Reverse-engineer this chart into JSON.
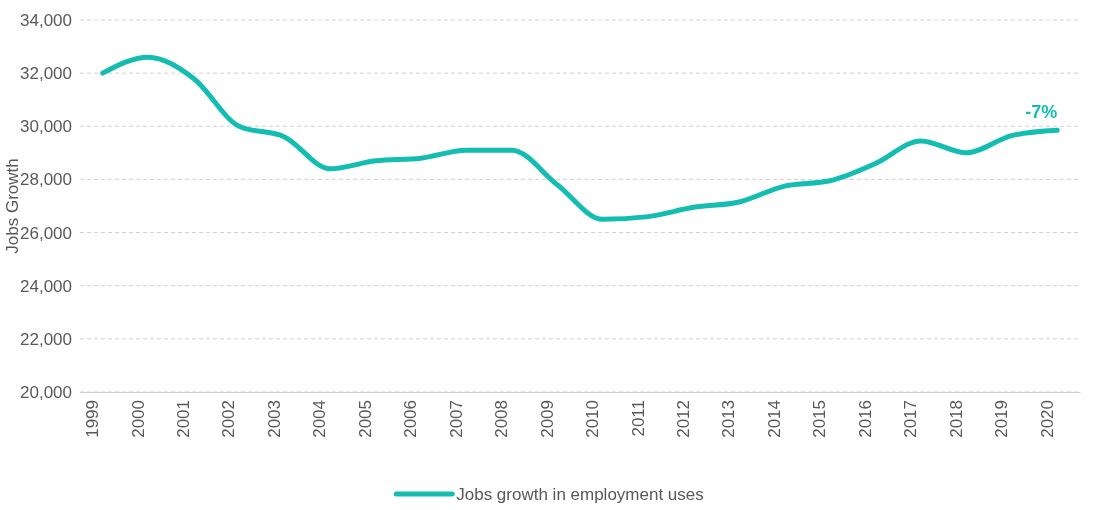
{
  "chart_data": {
    "type": "line",
    "ylabel": "Jobs Growth",
    "categories": [
      "1999",
      "2000",
      "2001",
      "2002",
      "2003",
      "2004",
      "2005",
      "2006",
      "2007",
      "2008",
      "2009",
      "2010",
      "2011",
      "2012",
      "2013",
      "2014",
      "2015",
      "2016",
      "2017",
      "2018",
      "2019",
      "2020"
    ],
    "series": [
      {
        "name": "Jobs growth in employment uses",
        "color": "#14bdb2",
        "values": [
          32000,
          32600,
          31800,
          30000,
          29600,
          28400,
          28700,
          28800,
          29100,
          29100,
          27800,
          26500,
          26600,
          26950,
          27150,
          27750,
          27950,
          28600,
          29450,
          29000,
          29650,
          29850
        ]
      }
    ],
    "ylim": [
      20000,
      34000
    ],
    "yticks": [
      {
        "value": 20000,
        "label": "20,000"
      },
      {
        "value": 22000,
        "label": "22,000"
      },
      {
        "value": 24000,
        "label": "24,000"
      },
      {
        "value": 26000,
        "label": "26,000"
      },
      {
        "value": 28000,
        "label": "28,000"
      },
      {
        "value": 30000,
        "label": "30,000"
      },
      {
        "value": 32000,
        "label": "32,000"
      },
      {
        "value": 34000,
        "label": "34,000"
      }
    ],
    "grid": "y",
    "legend": "bottom",
    "marker": "none",
    "line_style": "solid",
    "annotations": [
      {
        "text": "-7%",
        "x": "2020",
        "y": 29850
      }
    ]
  }
}
